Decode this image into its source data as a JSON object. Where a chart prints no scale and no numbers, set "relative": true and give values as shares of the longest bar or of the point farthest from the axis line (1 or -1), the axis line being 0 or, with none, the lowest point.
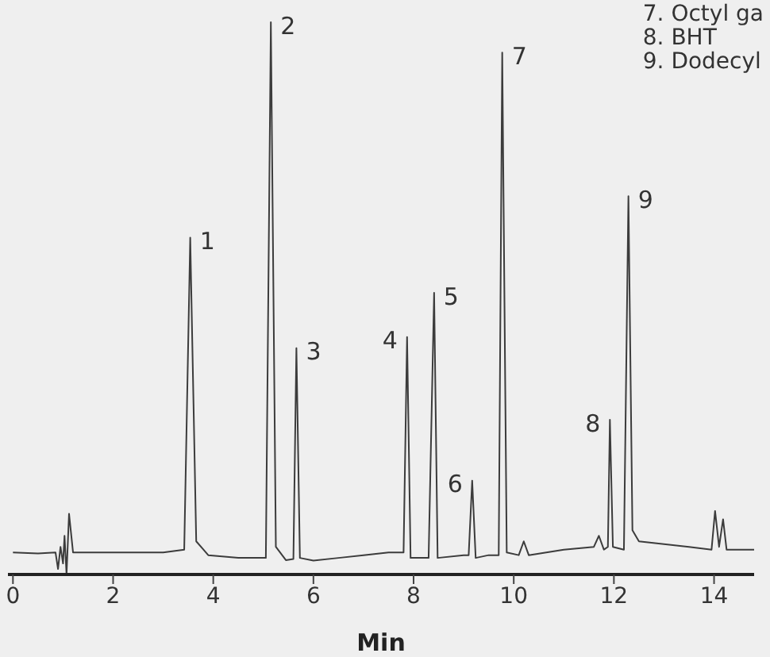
{
  "chart_data": {
    "type": "line",
    "relative": true,
    "color": "#3c3c3c",
    "xlabel": "Min",
    "xlim": [
      -0.1,
      14.8
    ],
    "xticks": [
      0,
      2,
      4,
      6,
      8,
      10,
      12,
      14
    ],
    "x": [
      0,
      0.5,
      0.85,
      0.9,
      0.95,
      1.0,
      1.03,
      1.07,
      1.12,
      1.2,
      2,
      3,
      3.42,
      3.54,
      3.66,
      3.9,
      4.5,
      5.05,
      5.15,
      5.25,
      5.45,
      5.6,
      5.66,
      5.73,
      6.0,
      6.5,
      7.0,
      7.5,
      7.8,
      7.87,
      7.94,
      8.3,
      8.41,
      8.48,
      9.0,
      9.1,
      9.17,
      9.24,
      9.5,
      9.7,
      9.77,
      9.86,
      10.1,
      10.2,
      10.3,
      11.0,
      11.6,
      11.7,
      11.8,
      11.88,
      11.92,
      11.98,
      12.2,
      12.29,
      12.37,
      12.5,
      13.5,
      13.95,
      14.02,
      14.1,
      14.18,
      14.25,
      14.8
    ],
    "values": [
      0.04,
      0.038,
      0.04,
      0.01,
      0.05,
      0.02,
      0.07,
      0.0,
      0.11,
      0.04,
      0.04,
      0.04,
      0.045,
      0.61,
      0.06,
      0.035,
      0.03,
      0.03,
      1.0,
      0.05,
      0.026,
      0.028,
      0.41,
      0.03,
      0.025,
      0.03,
      0.035,
      0.04,
      0.04,
      0.43,
      0.03,
      0.03,
      0.51,
      0.03,
      0.035,
      0.035,
      0.17,
      0.03,
      0.035,
      0.035,
      0.945,
      0.04,
      0.035,
      0.06,
      0.035,
      0.045,
      0.05,
      0.07,
      0.045,
      0.05,
      0.28,
      0.05,
      0.045,
      0.685,
      0.08,
      0.06,
      0.05,
      0.045,
      0.115,
      0.05,
      0.1,
      0.045,
      0.045
    ],
    "annotations": [
      {
        "text": "1",
        "x": 3.54,
        "y": 0.61
      },
      {
        "text": "2",
        "x": 5.15,
        "y": 1.0
      },
      {
        "text": "3",
        "x": 5.66,
        "y": 0.41
      },
      {
        "text": "4",
        "x": 7.87,
        "y": 0.43
      },
      {
        "text": "5",
        "x": 8.41,
        "y": 0.51
      },
      {
        "text": "6",
        "x": 9.17,
        "y": 0.17
      },
      {
        "text": "7",
        "x": 9.77,
        "y": 0.945
      },
      {
        "text": "8",
        "x": 11.92,
        "y": 0.28
      },
      {
        "text": "9",
        "x": 12.29,
        "y": 0.685
      },
      "7. Octyl ga",
      "8. BHT",
      "9. Dodecyl"
    ]
  }
}
